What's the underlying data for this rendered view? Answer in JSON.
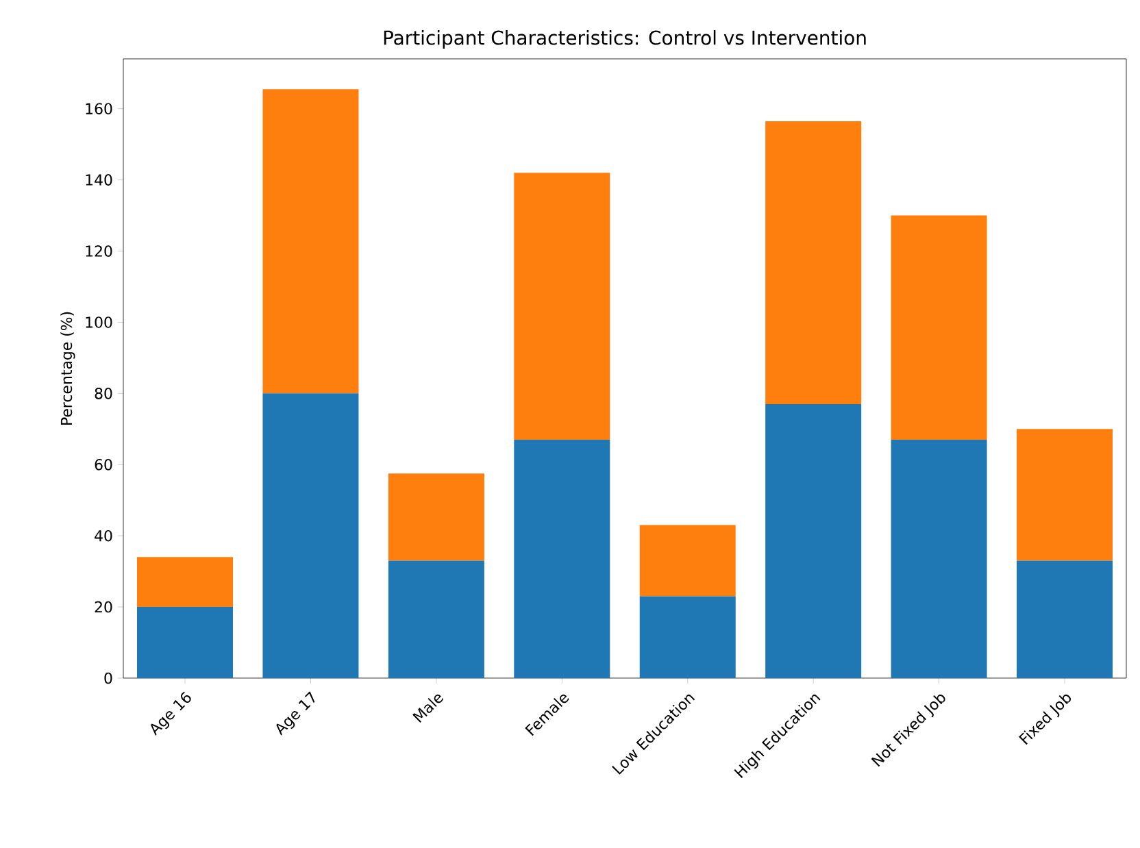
{
  "chart_data": {
    "type": "bar",
    "stacked": true,
    "title": "Participant Characteristics: Control vs Intervention",
    "ylabel": "Percentage (%)",
    "categories": [
      "Age 16",
      "Age 17",
      "Male",
      "Female",
      "Low Education",
      "High Education",
      "Not Fixed Job",
      "Fixed Job"
    ],
    "series": [
      {
        "color": "#1f77b4",
        "values": [
          20,
          80,
          33,
          67,
          23,
          77,
          67,
          33
        ]
      },
      {
        "color": "#ff7f0e",
        "values": [
          14,
          85.5,
          24.5,
          75,
          20,
          79.5,
          63,
          37
        ]
      }
    ],
    "ylim": [
      0,
      174
    ],
    "yticks": [
      0,
      20,
      40,
      60,
      80,
      100,
      120,
      140,
      160
    ]
  }
}
